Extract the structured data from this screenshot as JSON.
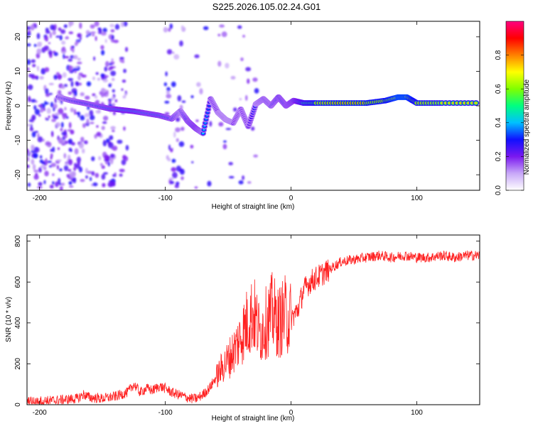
{
  "page": {
    "title": "S225.2026.105.02.24.G01"
  },
  "chart_data": [
    {
      "id": "spectrogram",
      "type": "heatmap",
      "title": "S225.2026.105.02.24.G01",
      "xlabel": "Height of straight line (km)",
      "ylabel": "Frequency (Hz)",
      "xlim": [
        -210,
        150
      ],
      "ylim": [
        -24.5,
        24.5
      ],
      "xticks": [
        -200,
        -100,
        0,
        100
      ],
      "xtick_labels": [
        "-200",
        "-100",
        "0",
        "100"
      ],
      "yticks": [
        -20,
        -10,
        0,
        10,
        20
      ],
      "ytick_labels": [
        "-20",
        "-10",
        "0",
        "10",
        "20"
      ],
      "colorbar": {
        "label": "Normalized spectral amplitude",
        "range": [
          0.0,
          1.0
        ],
        "ticks": [
          0.0,
          0.2,
          0.4,
          0.6,
          0.8
        ],
        "tick_labels": [
          "0.0",
          "0.2",
          "0.4",
          "0.6",
          "0.8"
        ],
        "colors": [
          "#ffffff",
          "#c8a8f8",
          "#7a18f0",
          "#1010ff",
          "#00c0ff",
          "#00ff80",
          "#80ff00",
          "#ffff00",
          "#ff8000",
          "#ff0000",
          "#ff0080"
        ]
      },
      "ridge": {
        "description_values": true,
        "x": [
          -185,
          -175,
          -165,
          -155,
          -145,
          -135,
          -125,
          -115,
          -105,
          -95,
          -88,
          -82,
          -76,
          -70,
          -64,
          -58,
          -52,
          -46,
          -40,
          -34,
          -28,
          -22,
          -16,
          -10,
          -4,
          2,
          10,
          20,
          40,
          60,
          75,
          85,
          92,
          100,
          120,
          150
        ],
        "y": [
          2.5,
          1.5,
          0.8,
          0.0,
          -0.8,
          -1.2,
          -1.6,
          -2.2,
          -2.8,
          -3.8,
          -1.5,
          -4.5,
          -6.5,
          -8.0,
          2.0,
          -2.0,
          -4.0,
          -5.0,
          -1.0,
          -6.0,
          0.5,
          2.0,
          0.0,
          2.5,
          0.0,
          1.5,
          0.8,
          0.8,
          0.8,
          0.8,
          1.5,
          2.5,
          2.5,
          0.8,
          0.8,
          0.8
        ],
        "amplitude": [
          0.35,
          0.4,
          0.45,
          0.45,
          0.5,
          0.55,
          0.55,
          0.5,
          0.5,
          0.45,
          0.35,
          0.45,
          0.5,
          0.4,
          0.3,
          0.3,
          0.3,
          0.3,
          0.25,
          0.25,
          0.35,
          0.4,
          0.4,
          0.45,
          0.45,
          0.5,
          0.7,
          0.8,
          0.85,
          0.85,
          0.85,
          0.95,
          0.95,
          0.8,
          0.75,
          0.75
        ]
      }
    },
    {
      "id": "snr",
      "type": "line",
      "xlabel": "Height of straight line (km)",
      "ylabel": "SNR (10 * v/v)",
      "xlim": [
        -210,
        150
      ],
      "ylim": [
        0,
        830
      ],
      "xticks": [
        -200,
        -100,
        0,
        100
      ],
      "xtick_labels": [
        "-200",
        "-100",
        "0",
        "100"
      ],
      "yticks": [
        0,
        200,
        400,
        600,
        800
      ],
      "ytick_labels": [
        "0",
        "200",
        "400",
        "600",
        "800"
      ],
      "color": "#ff2020",
      "series": [
        {
          "x": [
            -210,
            -200,
            -190,
            -180,
            -170,
            -165,
            -160,
            -150,
            -140,
            -130,
            -125,
            -120,
            -115,
            -110,
            -105,
            -100,
            -95,
            -90,
            -85,
            -80,
            -75,
            -70,
            -65,
            -60,
            -55,
            -50,
            -45,
            -40,
            -35,
            -30,
            -25,
            -20,
            -15,
            -10,
            -5,
            0,
            5,
            10,
            15,
            20,
            25,
            30,
            35,
            40,
            50,
            60,
            70,
            80,
            90,
            100,
            110,
            120,
            130,
            140,
            150
          ],
          "values": [
            15,
            18,
            20,
            25,
            30,
            50,
            35,
            30,
            40,
            60,
            100,
            60,
            80,
            70,
            90,
            80,
            60,
            50,
            40,
            30,
            30,
            50,
            80,
            130,
            180,
            220,
            270,
            330,
            400,
            450,
            350,
            400,
            450,
            400,
            440,
            420,
            460,
            560,
            600,
            620,
            640,
            660,
            680,
            700,
            710,
            720,
            730,
            720,
            730,
            720,
            720,
            730,
            720,
            730,
            730
          ]
        }
      ]
    }
  ]
}
